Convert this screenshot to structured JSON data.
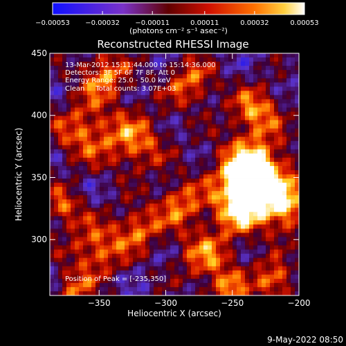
{
  "chart_data": {
    "type": "heatmap",
    "title": "Reconstructed RHESSI Image",
    "xlabel": "Heliocentric X (arcsec)",
    "ylabel": "Heliocentric Y (arcsec)",
    "xlim": [
      -387,
      -200
    ],
    "ylim": [
      255,
      450
    ],
    "x_ticks": [
      -350,
      -300,
      -250,
      -200
    ],
    "x_tick_labels": [
      "−350",
      "−300",
      "−250",
      "−200"
    ],
    "y_ticks": [
      300,
      350,
      400,
      450
    ],
    "y_tick_labels": [
      "300",
      "350",
      "400",
      "450"
    ],
    "colorbar": {
      "range": [
        -0.00053,
        0.00053
      ],
      "tick_values": [
        -0.00053,
        -0.00032,
        -0.00011,
        0.00011,
        0.00032,
        0.00053
      ],
      "tick_labels": [
        "−0.00053",
        "−0.00032",
        "−0.00011",
        "0.00011",
        "0.00032",
        "0.00053"
      ],
      "unit_label": "(photons cm⁻² s⁻¹ asec⁻²)",
      "colors": [
        "#1010ff",
        "#7a32c8",
        "#600000",
        "#d01000",
        "#ff7000",
        "#ffffff"
      ]
    },
    "annotations": [
      "13-Mar-2012 15:11:44.000 to 15:14:36.000",
      "Detectors: 3F 5F 6F 7F 8F, Att 0",
      "Energy Range: 25.0 - 50.0 keV",
      "Clean     Total counts: 3.07E+03"
    ],
    "peak_label": "Position of Peak = [-235,350]",
    "peak_position": [
      -235,
      350
    ]
  },
  "footer": {
    "timestamp": "9-May-2022 08:50"
  }
}
